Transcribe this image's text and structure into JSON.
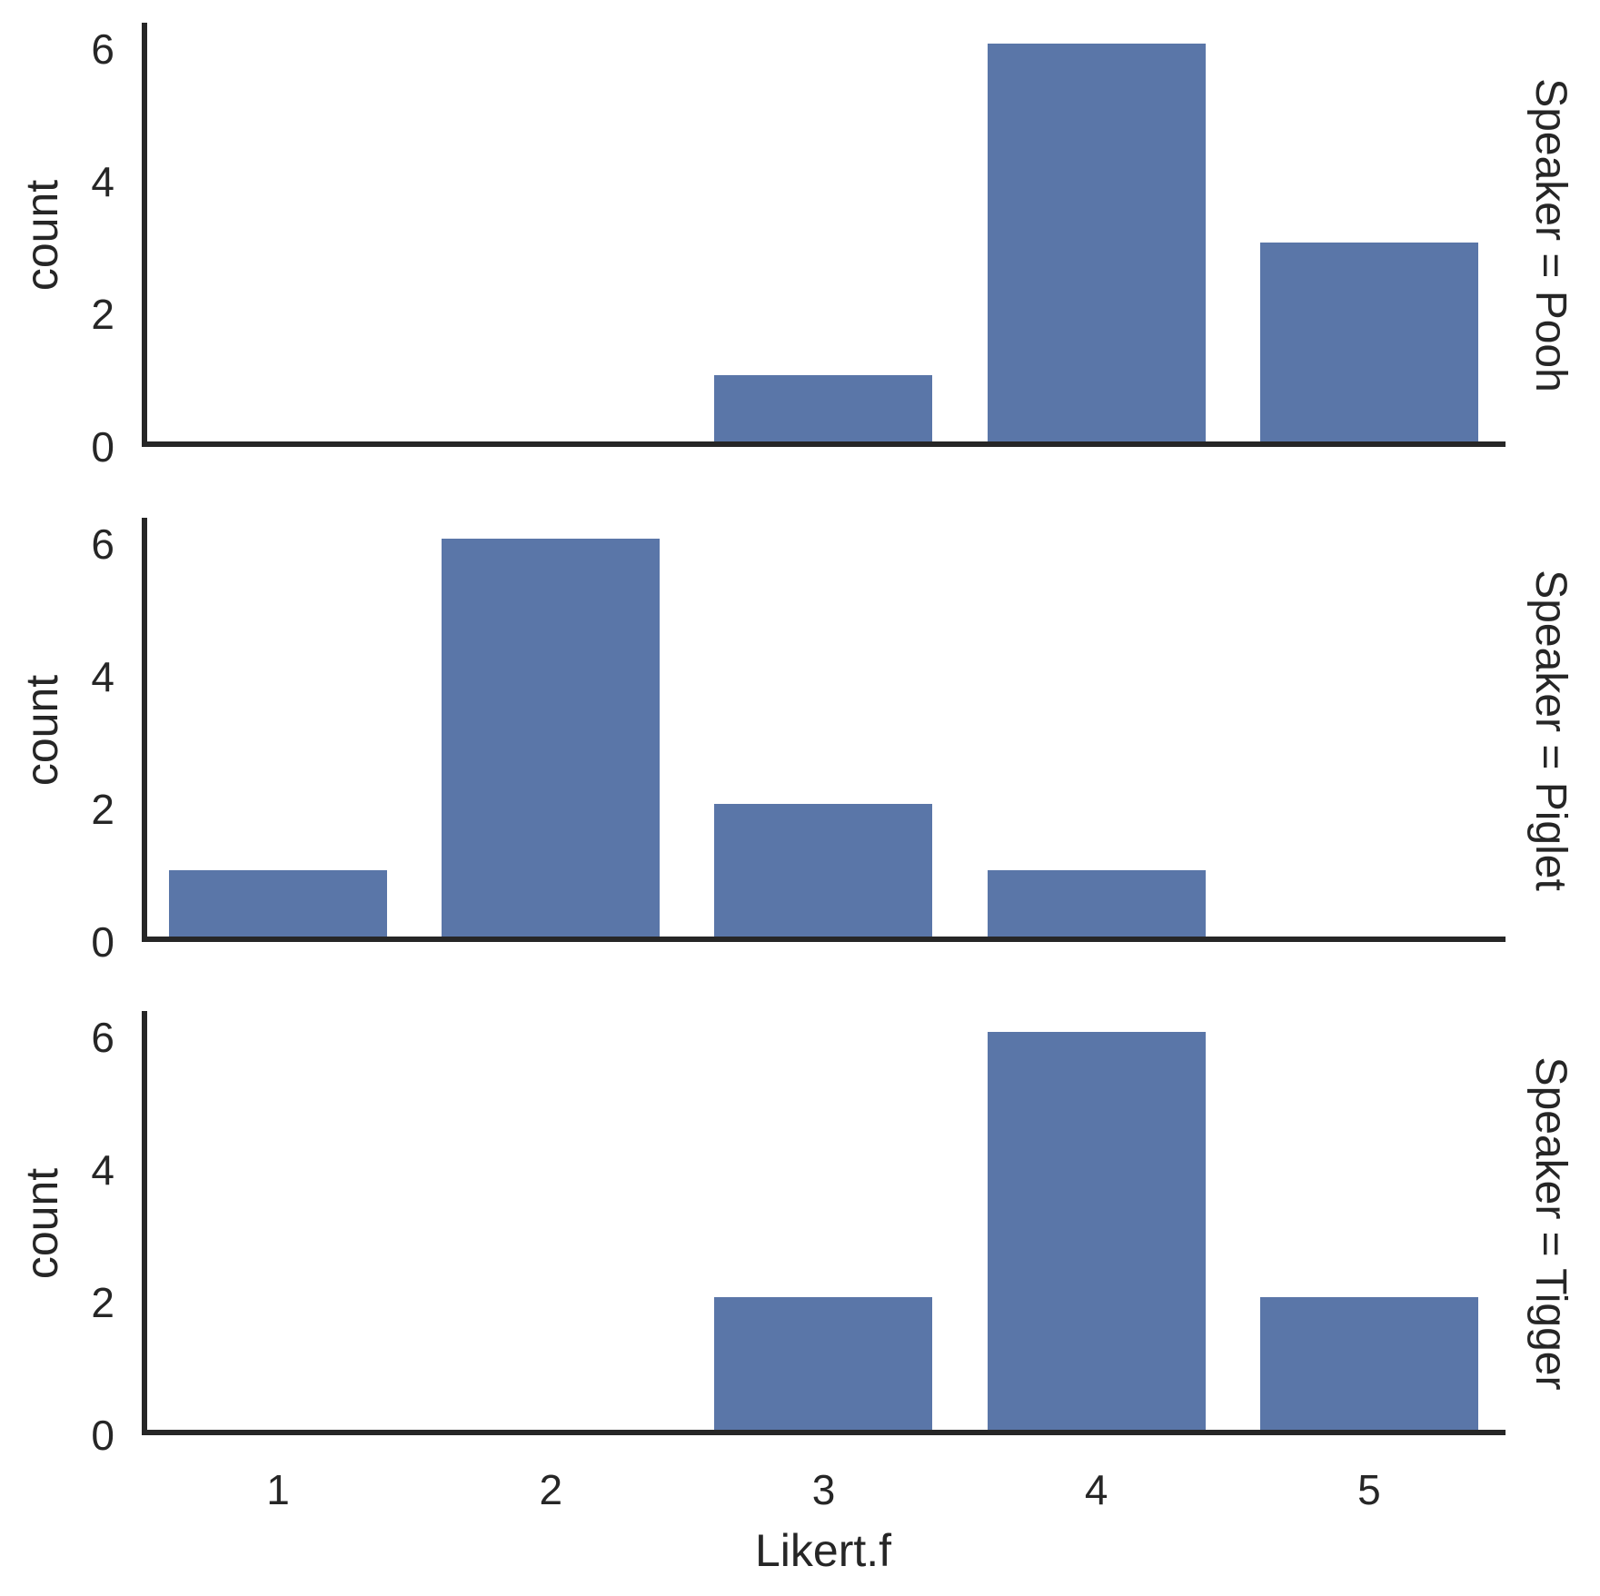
{
  "figure": {
    "background": "#ffffff"
  },
  "chart_data": {
    "type": "bar",
    "layout": "faceted_rows",
    "title": "",
    "xlabel": "Likert.f",
    "ylabel": "count",
    "facet_variable": "Speaker",
    "categories": [
      "1",
      "2",
      "3",
      "4",
      "5"
    ],
    "facets": [
      {
        "title": "Speaker = Pooh",
        "speaker": "Pooh",
        "values": [
          0,
          0,
          1,
          6,
          3
        ]
      },
      {
        "title": "Speaker = Piglet",
        "speaker": "Piglet",
        "values": [
          1,
          6,
          2,
          1,
          0
        ]
      },
      {
        "title": "Speaker = Tigger",
        "speaker": "Tigger",
        "values": [
          0,
          0,
          2,
          6,
          2
        ]
      }
    ],
    "yticks": [
      0,
      2,
      4,
      6
    ],
    "ylim": [
      0,
      6.4
    ],
    "grid": false,
    "legend_position": "none",
    "bar_color": "#5a76a8",
    "axis_color": "#262626",
    "text_color": "#262626"
  }
}
